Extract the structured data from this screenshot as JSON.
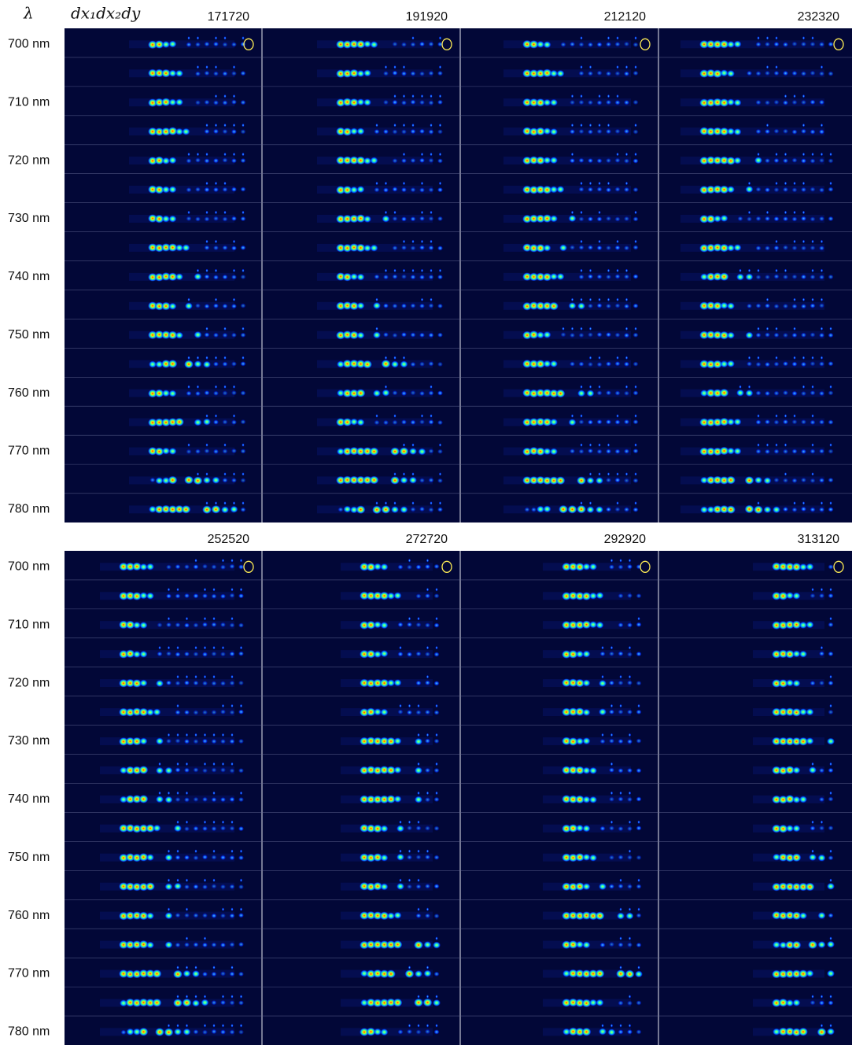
{
  "header": {
    "lambda": "λ",
    "variable": "dx₁dx₂dy"
  },
  "panels": [
    {
      "columns": [
        "171720",
        "191920",
        "212120",
        "232320"
      ],
      "row_labels": [
        "700 nm",
        "710 nm",
        "720 nm",
        "730 nm",
        "740 nm",
        "750 nm",
        "760 nm",
        "770 nm",
        "780 nm"
      ]
    },
    {
      "columns": [
        "252520",
        "272720",
        "292920",
        "313120"
      ],
      "row_labels": [
        "700 nm",
        "710 nm",
        "720 nm",
        "730 nm",
        "740 nm",
        "750 nm",
        "760 nm",
        "770 nm",
        "780 nm"
      ]
    }
  ]
}
